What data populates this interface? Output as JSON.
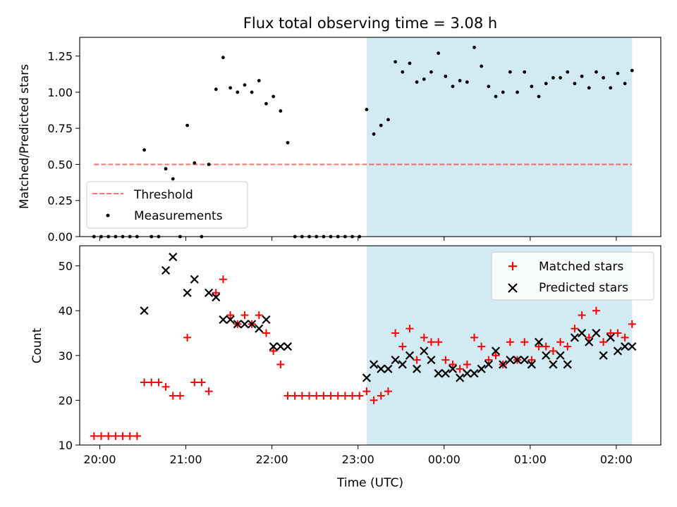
{
  "title": "Flux total observing time = 3.08 h",
  "colors": {
    "shade": "#add8e6",
    "threshold": "#ff0000",
    "matched": "#ff0000",
    "predicted": "#000000",
    "measurement": "#000000"
  },
  "chart_data": [
    {
      "type": "scatter",
      "panel": "top",
      "title": "Flux total observing time = 3.08 h",
      "xlabel": "",
      "ylabel": "Matched/Predicted stars",
      "ylim": [
        0,
        1.38
      ],
      "yticks": [
        0,
        0.25,
        0.5,
        0.75,
        1.0,
        1.25
      ],
      "ytick_labels": [
        "0.00",
        "0.25",
        "0.50",
        "0.75",
        "1.00",
        "1.25"
      ],
      "xlim": [
        "19:46",
        "02:31"
      ],
      "grid": false,
      "legend_position": "lower-left",
      "shaded_interval": [
        "23:06",
        "02:11"
      ],
      "threshold": {
        "name": "Threshold",
        "value": 0.5,
        "x_range": [
          "19:56",
          "02:11"
        ],
        "style": "dashed"
      },
      "series": [
        {
          "name": "Measurements",
          "x": [
            "19:56",
            "20:01",
            "20:06",
            "20:11",
            "20:16",
            "20:21",
            "20:26",
            "20:31",
            "20:36",
            "20:41",
            "20:46",
            "20:51",
            "20:56",
            "21:01",
            "21:06",
            "21:11",
            "21:16",
            "21:21",
            "21:26",
            "21:31",
            "21:36",
            "21:41",
            "21:46",
            "21:51",
            "21:56",
            "22:01",
            "22:06",
            "22:11",
            "22:16",
            "22:21",
            "22:26",
            "22:31",
            "22:36",
            "22:41",
            "22:46",
            "22:51",
            "22:56",
            "23:01",
            "23:06",
            "23:11",
            "23:16",
            "23:21",
            "23:26",
            "23:31",
            "23:36",
            "23:41",
            "23:46",
            "23:51",
            "23:56",
            "00:01",
            "00:06",
            "00:11",
            "00:16",
            "00:21",
            "00:26",
            "00:31",
            "00:36",
            "00:41",
            "00:46",
            "00:51",
            "00:56",
            "01:01",
            "01:06",
            "01:11",
            "01:16",
            "01:21",
            "01:26",
            "01:31",
            "01:36",
            "01:41",
            "01:46",
            "01:51",
            "01:56",
            "02:01",
            "02:06",
            "02:11"
          ],
          "y": [
            0,
            0,
            0,
            0,
            0,
            0,
            0,
            0.6,
            0,
            0,
            0.47,
            0.4,
            0,
            0.77,
            0.51,
            0,
            0.5,
            1.02,
            1.24,
            1.03,
            1.0,
            1.05,
            1.0,
            1.08,
            0.92,
            0.97,
            0.87,
            0.65,
            0,
            0,
            0,
            0,
            0,
            0,
            0,
            0,
            0,
            0,
            0.88,
            0.71,
            0.77,
            0.81,
            1.21,
            1.14,
            1.2,
            1.07,
            1.09,
            1.14,
            1.27,
            1.11,
            1.04,
            1.08,
            1.07,
            1.31,
            1.18,
            1.04,
            0.97,
            1.0,
            1.14,
            1.0,
            1.14,
            1.04,
            0.97,
            1.06,
            1.1,
            1.1,
            1.14,
            1.06,
            1.11,
            1.03,
            1.14,
            1.1,
            1.03,
            1.13,
            1.06,
            1.15
          ]
        }
      ]
    },
    {
      "type": "scatter",
      "panel": "bottom",
      "title": "",
      "xlabel": "Time (UTC)",
      "ylabel": "Count",
      "ylim": [
        10,
        54.5
      ],
      "yticks": [
        10,
        20,
        30,
        40,
        50
      ],
      "ytick_labels": [
        "10",
        "20",
        "30",
        "40",
        "50"
      ],
      "xlim": [
        "19:46",
        "02:31"
      ],
      "xticks": [
        "20:00",
        "21:00",
        "22:00",
        "23:00",
        "00:00",
        "01:00",
        "02:00"
      ],
      "grid": false,
      "legend_position": "upper-right",
      "shaded_interval": [
        "23:06",
        "02:11"
      ],
      "series": [
        {
          "name": "Matched stars",
          "marker": "+",
          "x": [
            "19:56",
            "20:01",
            "20:06",
            "20:11",
            "20:16",
            "20:21",
            "20:26",
            "20:31",
            "20:36",
            "20:41",
            "20:46",
            "20:51",
            "20:56",
            "21:01",
            "21:06",
            "21:11",
            "21:16",
            "21:21",
            "21:26",
            "21:31",
            "21:36",
            "21:41",
            "21:46",
            "21:51",
            "21:56",
            "22:01",
            "22:06",
            "22:11",
            "22:16",
            "22:21",
            "22:26",
            "22:31",
            "22:36",
            "22:41",
            "22:46",
            "22:51",
            "22:56",
            "23:01",
            "23:06",
            "23:11",
            "23:16",
            "23:21",
            "23:26",
            "23:31",
            "23:36",
            "23:41",
            "23:46",
            "23:51",
            "23:56",
            "00:01",
            "00:06",
            "00:11",
            "00:16",
            "00:21",
            "00:26",
            "00:31",
            "00:36",
            "00:41",
            "00:46",
            "00:51",
            "00:56",
            "01:01",
            "01:06",
            "01:11",
            "01:16",
            "01:21",
            "01:26",
            "01:31",
            "01:36",
            "01:41",
            "01:46",
            "01:51",
            "01:56",
            "02:01",
            "02:06",
            "02:11"
          ],
          "y": [
            12,
            12,
            12,
            12,
            12,
            12,
            12,
            24,
            24,
            24,
            23,
            21,
            21,
            34,
            24,
            24,
            22,
            44,
            47,
            39,
            37,
            39,
            37,
            39,
            35,
            31,
            28,
            21,
            21,
            21,
            21,
            21,
            21,
            21,
            21,
            21,
            21,
            21,
            22,
            20,
            21,
            22,
            35,
            32,
            36,
            29,
            34,
            33,
            33,
            29,
            28,
            27,
            28,
            34,
            32,
            29,
            30,
            28,
            33,
            29,
            33,
            29,
            32,
            32,
            31,
            33,
            32,
            36,
            39,
            34,
            40,
            33,
            35,
            35,
            34,
            37
          ]
        },
        {
          "name": "Predicted stars",
          "marker": "x",
          "x": [
            "20:31",
            "20:46",
            "20:51",
            "21:01",
            "21:06",
            "21:16",
            "21:21",
            "21:26",
            "21:31",
            "21:36",
            "21:41",
            "21:46",
            "21:51",
            "21:56",
            "22:01",
            "22:06",
            "22:11",
            "23:06",
            "23:11",
            "23:16",
            "23:21",
            "23:26",
            "23:31",
            "23:36",
            "23:41",
            "23:46",
            "23:51",
            "23:56",
            "00:01",
            "00:06",
            "00:11",
            "00:16",
            "00:21",
            "00:26",
            "00:31",
            "00:36",
            "00:41",
            "00:46",
            "00:51",
            "00:56",
            "01:01",
            "01:06",
            "01:11",
            "01:16",
            "01:21",
            "01:26",
            "01:31",
            "01:36",
            "01:41",
            "01:46",
            "01:51",
            "01:56",
            "02:01",
            "02:06",
            "02:11"
          ],
          "y": [
            40,
            49,
            52,
            44,
            47,
            44,
            43,
            38,
            38,
            37,
            37,
            37,
            36,
            38,
            32,
            32,
            32,
            25,
            28,
            27,
            27,
            29,
            28,
            30,
            27,
            31,
            29,
            26,
            26,
            27,
            25,
            26,
            26,
            27,
            28,
            31,
            28,
            29,
            29,
            29,
            28,
            33,
            30,
            28,
            30,
            28,
            34,
            35,
            33,
            35,
            30,
            34,
            31,
            32,
            32
          ]
        }
      ]
    }
  ],
  "legends": {
    "top": [
      {
        "label": "Threshold",
        "symbol": "dashed-line"
      },
      {
        "label": "Measurements",
        "symbol": "dot"
      }
    ],
    "bottom": [
      {
        "label": "Matched stars",
        "symbol": "plus"
      },
      {
        "label": "Predicted stars",
        "symbol": "cross"
      }
    ]
  }
}
